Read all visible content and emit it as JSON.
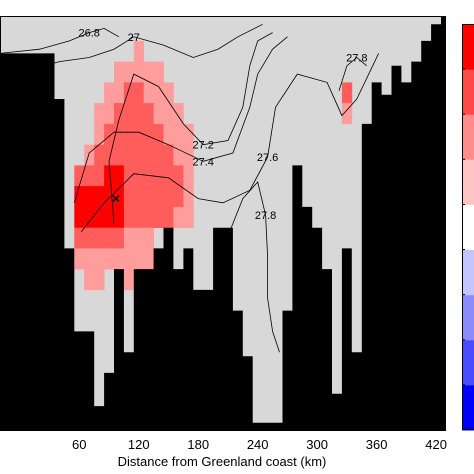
{
  "chart_data": {
    "type": "heatmap",
    "title": "",
    "xlabel": "Distance from Greenland coast (km)",
    "ylabel": "",
    "xlim": [
      -20,
      430
    ],
    "x_ticks": [
      "60",
      "120",
      "180",
      "240",
      "300",
      "360",
      "420"
    ],
    "x_tick_values": [
      60,
      120,
      180,
      240,
      300,
      360,
      420
    ],
    "colors": {
      "background": "#d8d8d8",
      "topography": "#000000",
      "anomaly_high": "#ff0000",
      "anomaly_mid": "#ff5c5c",
      "anomaly_low": "#ff9c9c",
      "colorbar": [
        "#0000ff",
        "#4a4aff",
        "#8c8cff",
        "#c4c4ff",
        "#ffffff",
        "#ffc4c4",
        "#ff8c8c",
        "#ff4a4a",
        "#ff0000"
      ]
    },
    "bottom_depth": [
      {
        "x": -20,
        "frac": 0.09
      },
      {
        "x": 35,
        "frac": 0.09
      },
      {
        "x": 35,
        "frac": 0.2
      },
      {
        "x": 45,
        "frac": 0.2
      },
      {
        "x": 45,
        "frac": 0.56
      },
      {
        "x": 55,
        "frac": 0.56
      },
      {
        "x": 55,
        "frac": 0.76
      },
      {
        "x": 75,
        "frac": 0.76
      },
      {
        "x": 75,
        "frac": 0.94
      },
      {
        "x": 85,
        "frac": 0.94
      },
      {
        "x": 85,
        "frac": 0.86
      },
      {
        "x": 95,
        "frac": 0.86
      },
      {
        "x": 95,
        "frac": 0.61
      },
      {
        "x": 105,
        "frac": 0.61
      },
      {
        "x": 105,
        "frac": 0.81
      },
      {
        "x": 115,
        "frac": 0.81
      },
      {
        "x": 115,
        "frac": 0.61
      },
      {
        "x": 135,
        "frac": 0.61
      },
      {
        "x": 135,
        "frac": 0.56
      },
      {
        "x": 145,
        "frac": 0.56
      },
      {
        "x": 145,
        "frac": 0.51
      },
      {
        "x": 155,
        "frac": 0.51
      },
      {
        "x": 155,
        "frac": 0.61
      },
      {
        "x": 165,
        "frac": 0.61
      },
      {
        "x": 165,
        "frac": 0.56
      },
      {
        "x": 175,
        "frac": 0.56
      },
      {
        "x": 175,
        "frac": 0.66
      },
      {
        "x": 195,
        "frac": 0.66
      },
      {
        "x": 195,
        "frac": 0.51
      },
      {
        "x": 215,
        "frac": 0.51
      },
      {
        "x": 215,
        "frac": 0.71
      },
      {
        "x": 225,
        "frac": 0.71
      },
      {
        "x": 225,
        "frac": 0.82
      },
      {
        "x": 235,
        "frac": 0.82
      },
      {
        "x": 235,
        "frac": 0.98
      },
      {
        "x": 265,
        "frac": 0.98
      },
      {
        "x": 265,
        "frac": 0.71
      },
      {
        "x": 275,
        "frac": 0.71
      },
      {
        "x": 275,
        "frac": 0.36
      },
      {
        "x": 285,
        "frac": 0.36
      },
      {
        "x": 285,
        "frac": 0.46
      },
      {
        "x": 295,
        "frac": 0.46
      },
      {
        "x": 295,
        "frac": 0.51
      },
      {
        "x": 305,
        "frac": 0.51
      },
      {
        "x": 305,
        "frac": 0.61
      },
      {
        "x": 315,
        "frac": 0.61
      },
      {
        "x": 315,
        "frac": 0.91
      },
      {
        "x": 325,
        "frac": 0.91
      },
      {
        "x": 325,
        "frac": 0.56
      },
      {
        "x": 335,
        "frac": 0.56
      },
      {
        "x": 335,
        "frac": 0.81
      },
      {
        "x": 345,
        "frac": 0.81
      },
      {
        "x": 345,
        "frac": 0.26
      },
      {
        "x": 355,
        "frac": 0.26
      },
      {
        "x": 355,
        "frac": 0.16
      },
      {
        "x": 365,
        "frac": 0.16
      },
      {
        "x": 365,
        "frac": 0.19
      },
      {
        "x": 375,
        "frac": 0.19
      },
      {
        "x": 375,
        "frac": 0.12
      },
      {
        "x": 385,
        "frac": 0.12
      },
      {
        "x": 385,
        "frac": 0.16
      },
      {
        "x": 395,
        "frac": 0.16
      },
      {
        "x": 395,
        "frac": 0.11
      },
      {
        "x": 405,
        "frac": 0.11
      },
      {
        "x": 405,
        "frac": 0.06
      },
      {
        "x": 415,
        "frac": 0.06
      },
      {
        "x": 415,
        "frac": 0.02
      },
      {
        "x": 425,
        "frac": 0.02
      },
      {
        "x": 425,
        "frac": 0.0
      },
      {
        "x": 430,
        "frac": 0.0
      }
    ],
    "anomaly_cells": [
      {
        "x": 120,
        "frac": 0.06,
        "level": "low"
      },
      {
        "x": 100,
        "frac": 0.11,
        "level": "low"
      },
      {
        "x": 110,
        "frac": 0.11,
        "level": "low"
      },
      {
        "x": 120,
        "frac": 0.11,
        "level": "low"
      },
      {
        "x": 130,
        "frac": 0.11,
        "level": "low"
      },
      {
        "x": 140,
        "frac": 0.11,
        "level": "low"
      },
      {
        "x": 90,
        "frac": 0.16,
        "level": "low"
      },
      {
        "x": 100,
        "frac": 0.16,
        "level": "low"
      },
      {
        "x": 110,
        "frac": 0.16,
        "level": "mid"
      },
      {
        "x": 120,
        "frac": 0.16,
        "level": "mid"
      },
      {
        "x": 130,
        "frac": 0.16,
        "level": "low"
      },
      {
        "x": 140,
        "frac": 0.16,
        "level": "low"
      },
      {
        "x": 150,
        "frac": 0.16,
        "level": "low"
      },
      {
        "x": 330,
        "frac": 0.16,
        "level": "mid"
      },
      {
        "x": 80,
        "frac": 0.21,
        "level": "low"
      },
      {
        "x": 90,
        "frac": 0.21,
        "level": "low"
      },
      {
        "x": 100,
        "frac": 0.21,
        "level": "mid"
      },
      {
        "x": 110,
        "frac": 0.21,
        "level": "mid"
      },
      {
        "x": 120,
        "frac": 0.21,
        "level": "mid"
      },
      {
        "x": 130,
        "frac": 0.21,
        "level": "mid"
      },
      {
        "x": 140,
        "frac": 0.21,
        "level": "low"
      },
      {
        "x": 150,
        "frac": 0.21,
        "level": "low"
      },
      {
        "x": 160,
        "frac": 0.21,
        "level": "low"
      },
      {
        "x": 330,
        "frac": 0.21,
        "level": "low"
      },
      {
        "x": 80,
        "frac": 0.26,
        "level": "low"
      },
      {
        "x": 90,
        "frac": 0.26,
        "level": "mid"
      },
      {
        "x": 100,
        "frac": 0.26,
        "level": "mid"
      },
      {
        "x": 110,
        "frac": 0.26,
        "level": "mid"
      },
      {
        "x": 120,
        "frac": 0.26,
        "level": "mid"
      },
      {
        "x": 130,
        "frac": 0.26,
        "level": "mid"
      },
      {
        "x": 140,
        "frac": 0.26,
        "level": "mid"
      },
      {
        "x": 150,
        "frac": 0.26,
        "level": "low"
      },
      {
        "x": 160,
        "frac": 0.26,
        "level": "low"
      },
      {
        "x": 170,
        "frac": 0.26,
        "level": "low"
      },
      {
        "x": 70,
        "frac": 0.31,
        "level": "low"
      },
      {
        "x": 80,
        "frac": 0.31,
        "level": "mid"
      },
      {
        "x": 90,
        "frac": 0.31,
        "level": "mid"
      },
      {
        "x": 100,
        "frac": 0.31,
        "level": "mid"
      },
      {
        "x": 110,
        "frac": 0.31,
        "level": "mid"
      },
      {
        "x": 120,
        "frac": 0.31,
        "level": "mid"
      },
      {
        "x": 130,
        "frac": 0.31,
        "level": "mid"
      },
      {
        "x": 140,
        "frac": 0.31,
        "level": "mid"
      },
      {
        "x": 150,
        "frac": 0.31,
        "level": "mid"
      },
      {
        "x": 160,
        "frac": 0.31,
        "level": "low"
      },
      {
        "x": 170,
        "frac": 0.31,
        "level": "low"
      },
      {
        "x": 60,
        "frac": 0.36,
        "level": "mid"
      },
      {
        "x": 70,
        "frac": 0.36,
        "level": "mid"
      },
      {
        "x": 80,
        "frac": 0.36,
        "level": "mid"
      },
      {
        "x": 90,
        "frac": 0.36,
        "level": "high"
      },
      {
        "x": 100,
        "frac": 0.36,
        "level": "high"
      },
      {
        "x": 110,
        "frac": 0.36,
        "level": "mid"
      },
      {
        "x": 120,
        "frac": 0.36,
        "level": "mid"
      },
      {
        "x": 130,
        "frac": 0.36,
        "level": "mid"
      },
      {
        "x": 140,
        "frac": 0.36,
        "level": "mid"
      },
      {
        "x": 150,
        "frac": 0.36,
        "level": "mid"
      },
      {
        "x": 160,
        "frac": 0.36,
        "level": "mid"
      },
      {
        "x": 170,
        "frac": 0.36,
        "level": "low"
      },
      {
        "x": 60,
        "frac": 0.41,
        "level": "high"
      },
      {
        "x": 70,
        "frac": 0.41,
        "level": "high"
      },
      {
        "x": 80,
        "frac": 0.41,
        "level": "high"
      },
      {
        "x": 90,
        "frac": 0.41,
        "level": "high"
      },
      {
        "x": 100,
        "frac": 0.41,
        "level": "high"
      },
      {
        "x": 110,
        "frac": 0.41,
        "level": "mid"
      },
      {
        "x": 120,
        "frac": 0.41,
        "level": "mid"
      },
      {
        "x": 130,
        "frac": 0.41,
        "level": "mid"
      },
      {
        "x": 140,
        "frac": 0.41,
        "level": "mid"
      },
      {
        "x": 150,
        "frac": 0.41,
        "level": "mid"
      },
      {
        "x": 160,
        "frac": 0.41,
        "level": "mid"
      },
      {
        "x": 170,
        "frac": 0.41,
        "level": "low"
      },
      {
        "x": 60,
        "frac": 0.46,
        "level": "high"
      },
      {
        "x": 70,
        "frac": 0.46,
        "level": "high"
      },
      {
        "x": 80,
        "frac": 0.46,
        "level": "high"
      },
      {
        "x": 90,
        "frac": 0.46,
        "level": "high"
      },
      {
        "x": 100,
        "frac": 0.46,
        "level": "high"
      },
      {
        "x": 110,
        "frac": 0.46,
        "level": "mid"
      },
      {
        "x": 120,
        "frac": 0.46,
        "level": "mid"
      },
      {
        "x": 130,
        "frac": 0.46,
        "level": "mid"
      },
      {
        "x": 140,
        "frac": 0.46,
        "level": "mid"
      },
      {
        "x": 150,
        "frac": 0.46,
        "level": "mid"
      },
      {
        "x": 160,
        "frac": 0.46,
        "level": "low"
      },
      {
        "x": 170,
        "frac": 0.46,
        "level": "low"
      },
      {
        "x": 60,
        "frac": 0.51,
        "level": "mid"
      },
      {
        "x": 70,
        "frac": 0.51,
        "level": "mid"
      },
      {
        "x": 80,
        "frac": 0.51,
        "level": "mid"
      },
      {
        "x": 90,
        "frac": 0.51,
        "level": "mid"
      },
      {
        "x": 100,
        "frac": 0.51,
        "level": "mid"
      },
      {
        "x": 110,
        "frac": 0.51,
        "level": "low"
      },
      {
        "x": 120,
        "frac": 0.51,
        "level": "low"
      },
      {
        "x": 130,
        "frac": 0.51,
        "level": "low"
      },
      {
        "x": 60,
        "frac": 0.56,
        "level": "low"
      },
      {
        "x": 70,
        "frac": 0.56,
        "level": "low"
      },
      {
        "x": 80,
        "frac": 0.56,
        "level": "low"
      },
      {
        "x": 90,
        "frac": 0.56,
        "level": "low"
      },
      {
        "x": 100,
        "frac": 0.56,
        "level": "low"
      },
      {
        "x": 110,
        "frac": 0.56,
        "level": "low"
      },
      {
        "x": 120,
        "frac": 0.56,
        "level": "low"
      },
      {
        "x": 130,
        "frac": 0.56,
        "level": "low"
      },
      {
        "x": 140,
        "frac": 0.56,
        "level": "low"
      },
      {
        "x": 70,
        "frac": 0.61,
        "level": "low"
      },
      {
        "x": 80,
        "frac": 0.61,
        "level": "low"
      },
      {
        "x": 110,
        "frac": 0.61,
        "level": "low"
      },
      {
        "x": 120,
        "frac": 0.61,
        "level": "low"
      },
      {
        "x": 130,
        "frac": 0.61,
        "level": "low"
      }
    ],
    "contours": [
      {
        "label": "26.8",
        "points": [
          [
            -20,
            0.09
          ],
          [
            20,
            0.08
          ],
          [
            50,
            0.06
          ],
          [
            70,
            0.04
          ],
          [
            85,
            0.03
          ],
          [
            100,
            0.05
          ]
        ]
      },
      {
        "label": "27",
        "points": [
          [
            -20,
            0.17
          ],
          [
            10,
            0.13
          ],
          [
            40,
            0.11
          ],
          [
            70,
            0.1
          ],
          [
            95,
            0.08
          ],
          [
            115,
            0.05
          ],
          [
            145,
            0.07
          ],
          [
            175,
            0.1
          ],
          [
            200,
            0.08
          ],
          [
            220,
            0.05
          ],
          [
            245,
            0.02
          ]
        ]
      },
      {
        "label": "27.2",
        "points": [
          [
            95,
            0.5
          ],
          [
            90,
            0.35
          ],
          [
            100,
            0.25
          ],
          [
            115,
            0.14
          ],
          [
            140,
            0.17
          ],
          [
            165,
            0.26
          ],
          [
            185,
            0.31
          ],
          [
            210,
            0.3
          ],
          [
            225,
            0.22
          ],
          [
            232,
            0.12
          ],
          [
            240,
            0.06
          ],
          [
            255,
            0.04
          ]
        ]
      },
      {
        "label": "27.4",
        "points": [
          [
            55,
            0.45
          ],
          [
            70,
            0.33
          ],
          [
            95,
            0.28
          ],
          [
            120,
            0.28
          ],
          [
            150,
            0.31
          ],
          [
            185,
            0.35
          ],
          [
            215,
            0.33
          ],
          [
            232,
            0.22
          ],
          [
            240,
            0.14
          ],
          [
            255,
            0.08
          ],
          [
            270,
            0.05
          ]
        ]
      },
      {
        "label": "27.6",
        "points": [
          [
            62,
            0.52
          ],
          [
            85,
            0.45
          ],
          [
            115,
            0.38
          ],
          [
            150,
            0.39
          ],
          [
            180,
            0.44
          ],
          [
            205,
            0.45
          ],
          [
            232,
            0.42
          ],
          [
            250,
            0.34
          ],
          [
            258,
            0.22
          ],
          [
            280,
            0.14
          ],
          [
            310,
            0.16
          ],
          [
            325,
            0.24
          ],
          [
            340,
            0.2
          ],
          [
            362,
            0.09
          ]
        ]
      },
      {
        "label": "27.8",
        "points": [
          [
            200,
            0.59
          ],
          [
            215,
            0.5
          ],
          [
            225,
            0.44
          ],
          [
            240,
            0.4
          ],
          [
            248,
            0.48
          ],
          [
            250,
            0.58
          ],
          [
            250,
            0.68
          ],
          [
            255,
            0.76
          ],
          [
            262,
            0.81
          ]
        ]
      },
      {
        "label": "27.8",
        "points": [
          [
            322,
            0.18
          ],
          [
            330,
            0.12
          ],
          [
            340,
            0.1
          ],
          [
            350,
            0.12
          ]
        ]
      }
    ],
    "marker": {
      "x": 97,
      "frac": 0.44
    }
  }
}
